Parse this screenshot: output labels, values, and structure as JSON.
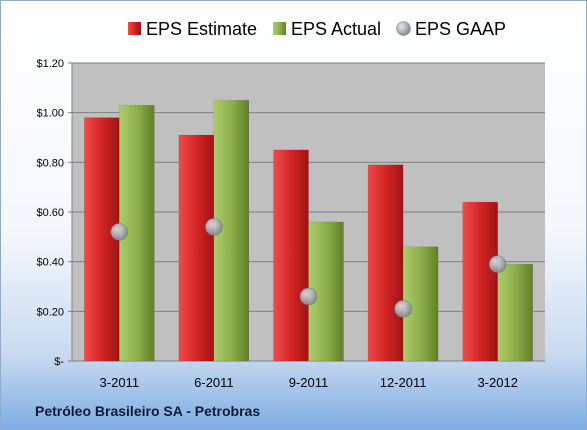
{
  "footer": {
    "company": "Petróleo Brasileiro SA - Petrobras"
  },
  "chart_data": {
    "type": "bar",
    "categories": [
      "3-2011",
      "6-2011",
      "9-2011",
      "12-2011",
      "3-2012"
    ],
    "series": [
      {
        "name": "EPS Estimate",
        "kind": "bar",
        "color": "#c8201f",
        "values": [
          0.98,
          0.91,
          0.85,
          0.79,
          0.64
        ]
      },
      {
        "name": "EPS Actual",
        "kind": "bar",
        "color": "#8eb04a",
        "values": [
          1.03,
          1.05,
          0.56,
          0.46,
          0.39
        ]
      },
      {
        "name": "EPS GAAP",
        "kind": "marker",
        "color": "#9aa0a8",
        "values": [
          0.52,
          0.54,
          0.26,
          0.21,
          0.39
        ]
      }
    ],
    "ylim": [
      0,
      1.2
    ],
    "yticks": [
      0,
      0.2,
      0.4,
      0.6,
      0.8,
      1.0,
      1.2
    ],
    "ytick_labels": [
      "$-",
      "$0.20",
      "$0.40",
      "$0.60",
      "$0.80",
      "$1.00",
      "$1.20"
    ],
    "legend_position": "top",
    "grid": true,
    "plot_background": "#c0c0c0"
  }
}
